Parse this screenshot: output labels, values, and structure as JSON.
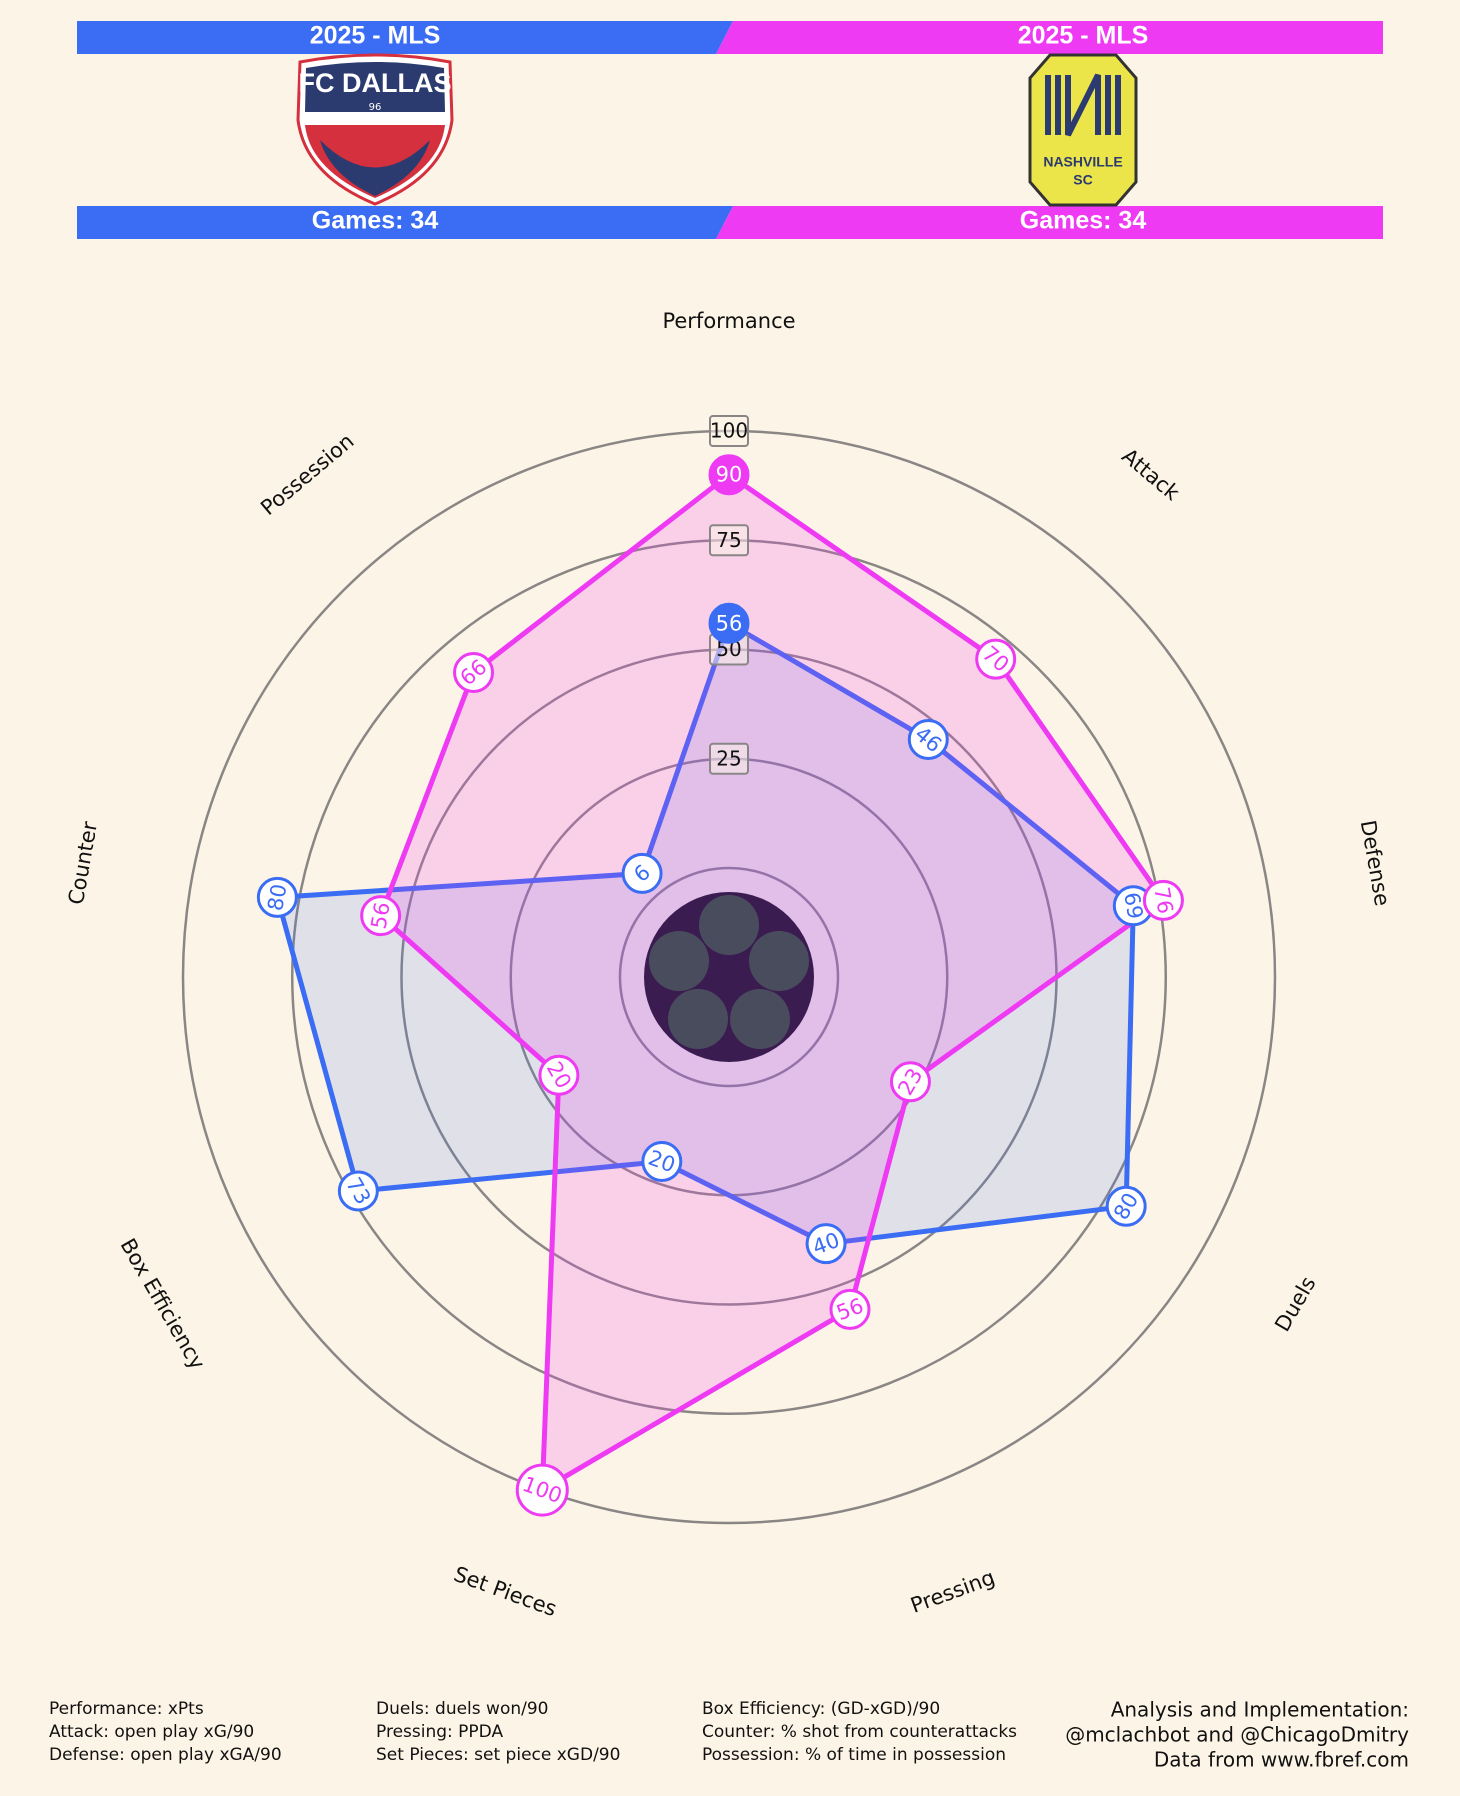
{
  "header": {
    "teams": [
      {
        "league": "2025 - MLS",
        "logo_text": [
          "FC DALLAS",
          "96"
        ],
        "games": "Games: 34",
        "color": "#3a6cf4"
      },
      {
        "league": "2025 - MLS",
        "logo_text": [
          "NASHVILLE",
          "SC"
        ],
        "games": "Games: 34",
        "color": "#ee3af2"
      }
    ]
  },
  "chart_data": {
    "type": "radar",
    "categories": [
      "Performance",
      "Attack",
      "Defense",
      "Duels",
      "Pressing",
      "Set Pieces",
      "Box Efficiency",
      "Counter",
      "Possession"
    ],
    "series": [
      {
        "color": "#3a6cf4",
        "values": [
          56,
          46,
          69,
          80,
          40,
          20,
          73,
          80,
          6
        ]
      },
      {
        "color": "#ee3af2",
        "values": [
          90,
          70,
          76,
          23,
          56,
          100,
          20,
          56,
          66
        ]
      }
    ],
    "ylim": [
      0,
      100
    ],
    "yticks": [
      25,
      50,
      75,
      100
    ],
    "grid": true
  },
  "footer": {
    "notes": [
      [
        "Performance: xPts",
        "Attack: open play xG/90",
        "Defense: open play xGA/90"
      ],
      [
        "Duels: duels won/90",
        "Pressing: PPDA",
        "Set Pieces: set piece xGD/90"
      ],
      [
        "Box Efficiency: (GD-xGD)/90",
        "Counter: % shot from counterattacks",
        "Possession: % of time in possession"
      ]
    ],
    "credits": [
      "Analysis and Implementation:",
      "@mclachbot and @ChicagoDmitry",
      "Data from www.fbref.com"
    ]
  }
}
